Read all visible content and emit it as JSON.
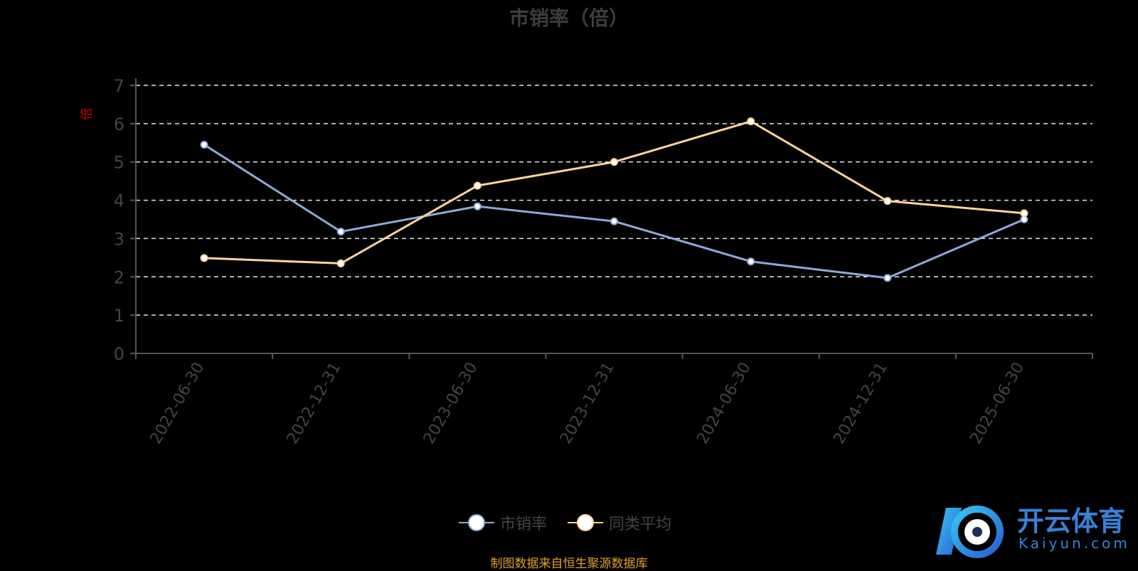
{
  "chart_data": {
    "type": "line",
    "title": "市销率（倍）",
    "ylabel": "倍",
    "categories": [
      "2022-06-30",
      "2022-12-31",
      "2023-06-30",
      "2023-12-31",
      "2024-06-30",
      "2024-12-31",
      "2025-06-30"
    ],
    "ylim": [
      0,
      7
    ],
    "yticks": [
      0,
      1,
      2,
      3,
      4,
      5,
      6,
      7
    ],
    "grid": true,
    "series": [
      {
        "name": "市销率",
        "values": [
          5.45,
          3.18,
          3.84,
          3.45,
          2.4,
          1.97,
          3.5
        ],
        "color": "#8fa9d8"
      },
      {
        "name": "同类平均",
        "values": [
          2.49,
          2.35,
          4.38,
          5.0,
          6.06,
          3.98,
          3.66
        ],
        "color": "#fdd49a"
      }
    ],
    "legend_position": "bottom-center"
  },
  "footer": {
    "source": "制图数据来自恒生聚源数据库"
  },
  "watermark": {
    "text": "开云体育",
    "sub": "Kaiyun.com"
  }
}
